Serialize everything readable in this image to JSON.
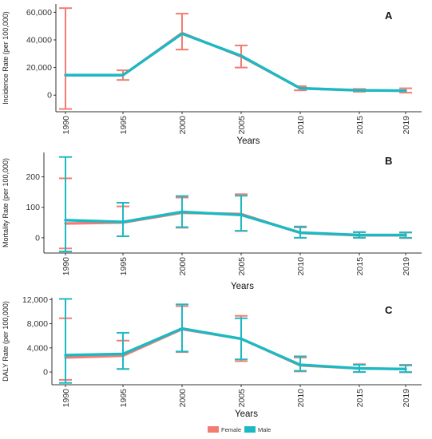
{
  "chart_data": [
    {
      "type": "line",
      "panel_label": "A",
      "title": "",
      "ylabel": "Incidence Rate (per 100,000)",
      "xlabel": "Years",
      "categories": [
        "1990",
        "1995",
        "2000",
        "2005",
        "2010",
        "2015",
        "2019"
      ],
      "ylim": [
        -12000,
        66000
      ],
      "yticks": [
        0,
        20000,
        40000,
        60000
      ],
      "ytick_labels": [
        "0",
        "20,000",
        "40,000",
        "60,000"
      ],
      "grid": false,
      "series": [
        {
          "name": "Female",
          "color": "#F27C72",
          "values": [
            14500,
            14500,
            45000,
            28000,
            5000,
            3500,
            3200
          ],
          "lower": [
            -10000,
            11000,
            33000,
            20000,
            3500,
            2500,
            1800
          ],
          "upper": [
            63000,
            18000,
            59000,
            36000,
            6500,
            4500,
            5000
          ]
        },
        {
          "name": "Male",
          "color": "#1DB9C2",
          "values": [
            14500,
            14500,
            44500,
            28500,
            5000,
            3500,
            3300
          ],
          "lower": [
            null,
            null,
            null,
            null,
            null,
            null,
            null
          ],
          "upper": [
            null,
            null,
            null,
            null,
            null,
            null,
            null
          ]
        }
      ]
    },
    {
      "type": "line",
      "panel_label": "B",
      "title": "",
      "ylabel": "Mortality Rate (per 100,000)",
      "xlabel": "Years",
      "categories": [
        "1990",
        "1995",
        "2000",
        "2005",
        "2010",
        "2015",
        "2019"
      ],
      "ylim": [
        -50,
        280
      ],
      "yticks": [
        0,
        100,
        200
      ],
      "ytick_labels": [
        "0",
        "100",
        "200"
      ],
      "grid": false,
      "series": [
        {
          "name": "Female",
          "color": "#F27C72",
          "values": [
            47,
            50,
            82,
            78,
            16,
            8,
            8
          ],
          "lower": [
            -35,
            5,
            33,
            22,
            0,
            0,
            -1
          ],
          "upper": [
            195,
            103,
            132,
            143,
            34,
            18,
            17
          ]
        },
        {
          "name": "Male",
          "color": "#1DB9C2",
          "values": [
            58,
            52,
            85,
            75,
            17,
            9,
            9
          ],
          "lower": [
            -45,
            5,
            35,
            23,
            0,
            0,
            0
          ],
          "upper": [
            265,
            115,
            137,
            138,
            37,
            19,
            18
          ]
        }
      ]
    },
    {
      "type": "line",
      "panel_label": "C",
      "title": "",
      "ylabel": "DALY Rate (per 100,000)",
      "xlabel": "Years",
      "categories": [
        "1990",
        "1995",
        "2000",
        "2005",
        "2010",
        "2015",
        "2019"
      ],
      "ylim": [
        -2100,
        12300
      ],
      "yticks": [
        0,
        4000,
        8000,
        12000
      ],
      "ytick_labels": [
        "0",
        "4,000",
        "8,000",
        "12,000"
      ],
      "grid": false,
      "series": [
        {
          "name": "Female",
          "color": "#F27C72",
          "values": [
            2400,
            2700,
            7100,
            5500,
            1100,
            600,
            500
          ],
          "lower": [
            -1300,
            500,
            3300,
            1800,
            100,
            0,
            -50
          ],
          "upper": [
            8900,
            5200,
            10900,
            9300,
            2400,
            1300,
            1200
          ]
        },
        {
          "name": "Male",
          "color": "#1DB9C2",
          "values": [
            2800,
            3000,
            7200,
            5500,
            1200,
            600,
            500
          ],
          "lower": [
            -1800,
            500,
            3400,
            2100,
            200,
            0,
            0
          ],
          "upper": [
            12100,
            6500,
            11200,
            8900,
            2600,
            1200,
            1100
          ]
        }
      ]
    }
  ],
  "legend": {
    "placement": "bottom",
    "entries": [
      {
        "name": "Female",
        "color": "#F27C72"
      },
      {
        "name": "Male",
        "color": "#1DB9C2"
      }
    ]
  }
}
